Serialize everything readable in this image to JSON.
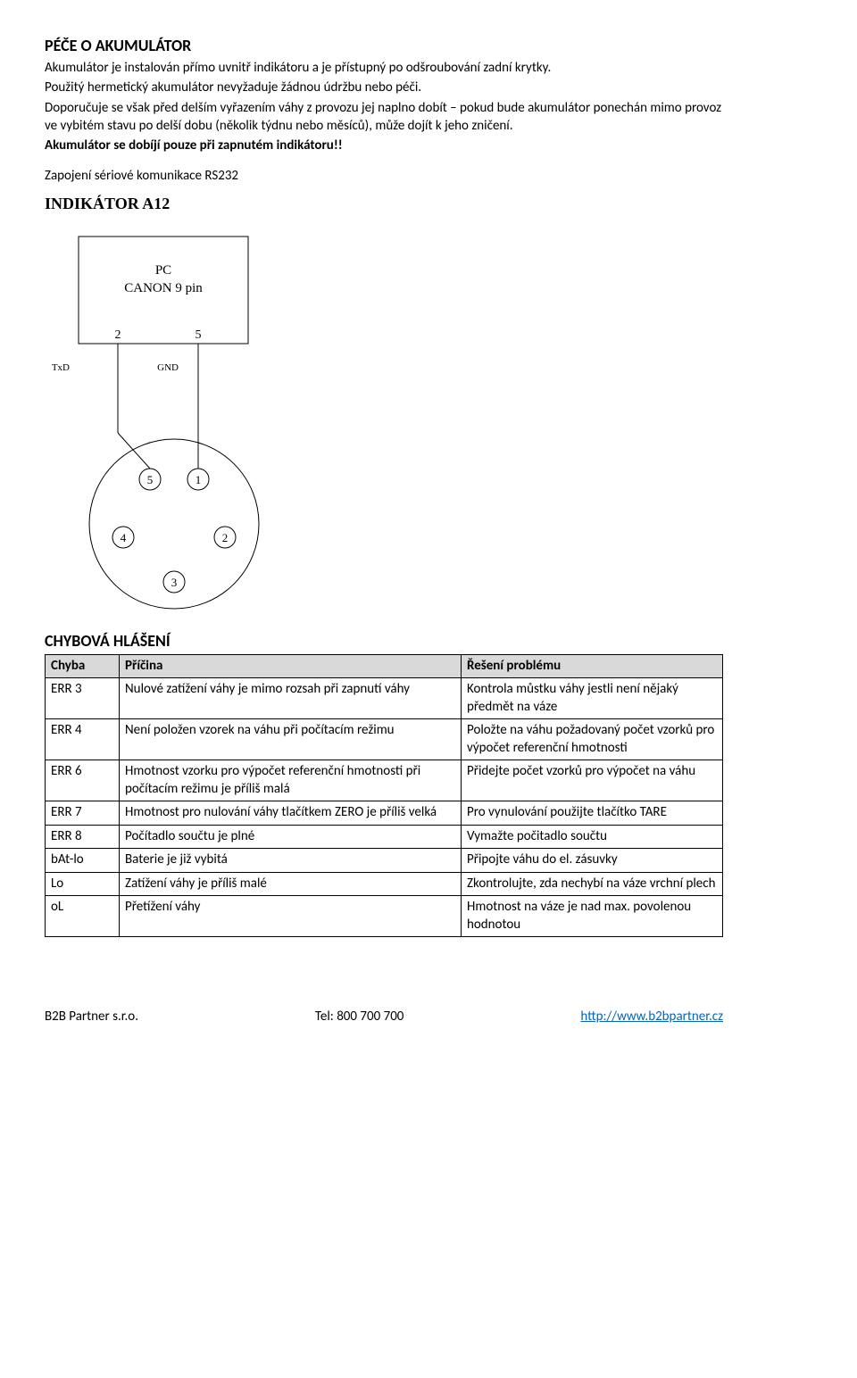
{
  "section1": {
    "heading": "PÉČE O AKUMULÁTOR",
    "p1": "Akumulátor je instalován přímo uvnitř indikátoru a je přístupný po odšroubování zadní krytky.",
    "p2": "Použitý hermetický akumulátor nevyžaduje žádnou údržbu nebo péči.",
    "p3": "Doporučuje se však před delším vyřazením váhy z provozu jej naplno dobít – pokud bude akumulátor ponechán mimo provoz ve vybitém stavu po delší dobu (několik týdnu nebo měsíců), může dojít k jeho zničení.",
    "p4": "Akumulátor se dobíjí pouze při zapnutém indikátoru!!"
  },
  "section2": {
    "intro": "Zapojení sériové komunikace RS232",
    "diagramTitle": "INDIKÁTOR A12",
    "diagram": {
      "pcBox": {
        "line1": "PC",
        "line2": "CANON 9 pin"
      },
      "pcPin2": "2",
      "pcPin5": "5",
      "labelTxD": "TxD",
      "labelGND": "GND",
      "connPins": [
        "1",
        "2",
        "3",
        "4",
        "5"
      ],
      "stroke": "#000000",
      "strokeWidth": 1,
      "fontFamily": "Times New Roman, serif",
      "fontSize": 13,
      "rectW": 190,
      "rectH": 120,
      "circleR": 95
    }
  },
  "errors": {
    "heading": "CHYBOVÁ HLÁŠENÍ",
    "headers": [
      "Chyba",
      "Příčina",
      "Řešení problému"
    ],
    "rows": [
      [
        "ERR 3",
        "Nulové zatížení váhy je mimo rozsah při zapnutí váhy",
        "Kontrola můstku váhy jestli není nějaký předmět na váze"
      ],
      [
        "ERR 4",
        "Není položen vzorek na váhu při počítacím režimu",
        "Položte na váhu požadovaný počet vzorků pro výpočet referenční hmotnosti"
      ],
      [
        "ERR 6",
        "Hmotnost vzorku pro výpočet referenční hmotnosti při počítacím režimu je příliš malá",
        "Přidejte počet vzorků pro výpočet na váhu"
      ],
      [
        "ERR 7",
        "Hmotnost pro nulování váhy tlačítkem ZERO je příliš velká",
        "Pro vynulování použijte tlačítko TARE"
      ],
      [
        "ERR 8",
        "Počítadlo součtu je plné",
        "Vymažte počitadlo součtu"
      ],
      [
        "bAt-lo",
        "Baterie je již vybitá",
        "Připojte váhu do el. zásuvky"
      ],
      [
        "Lo",
        "Zatížení váhy je příliš malé",
        "Zkontrolujte, zda nechybí na váze vrchní plech"
      ],
      [
        "oL",
        "Přetížení váhy",
        "Hmotnost na váze je nad max. povolenou hodnotou"
      ]
    ]
  },
  "footer": {
    "left": "B2B Partner s.r.o.",
    "center": "Tel: 800 700 700",
    "right": "http://www.b2bpartner.cz"
  }
}
